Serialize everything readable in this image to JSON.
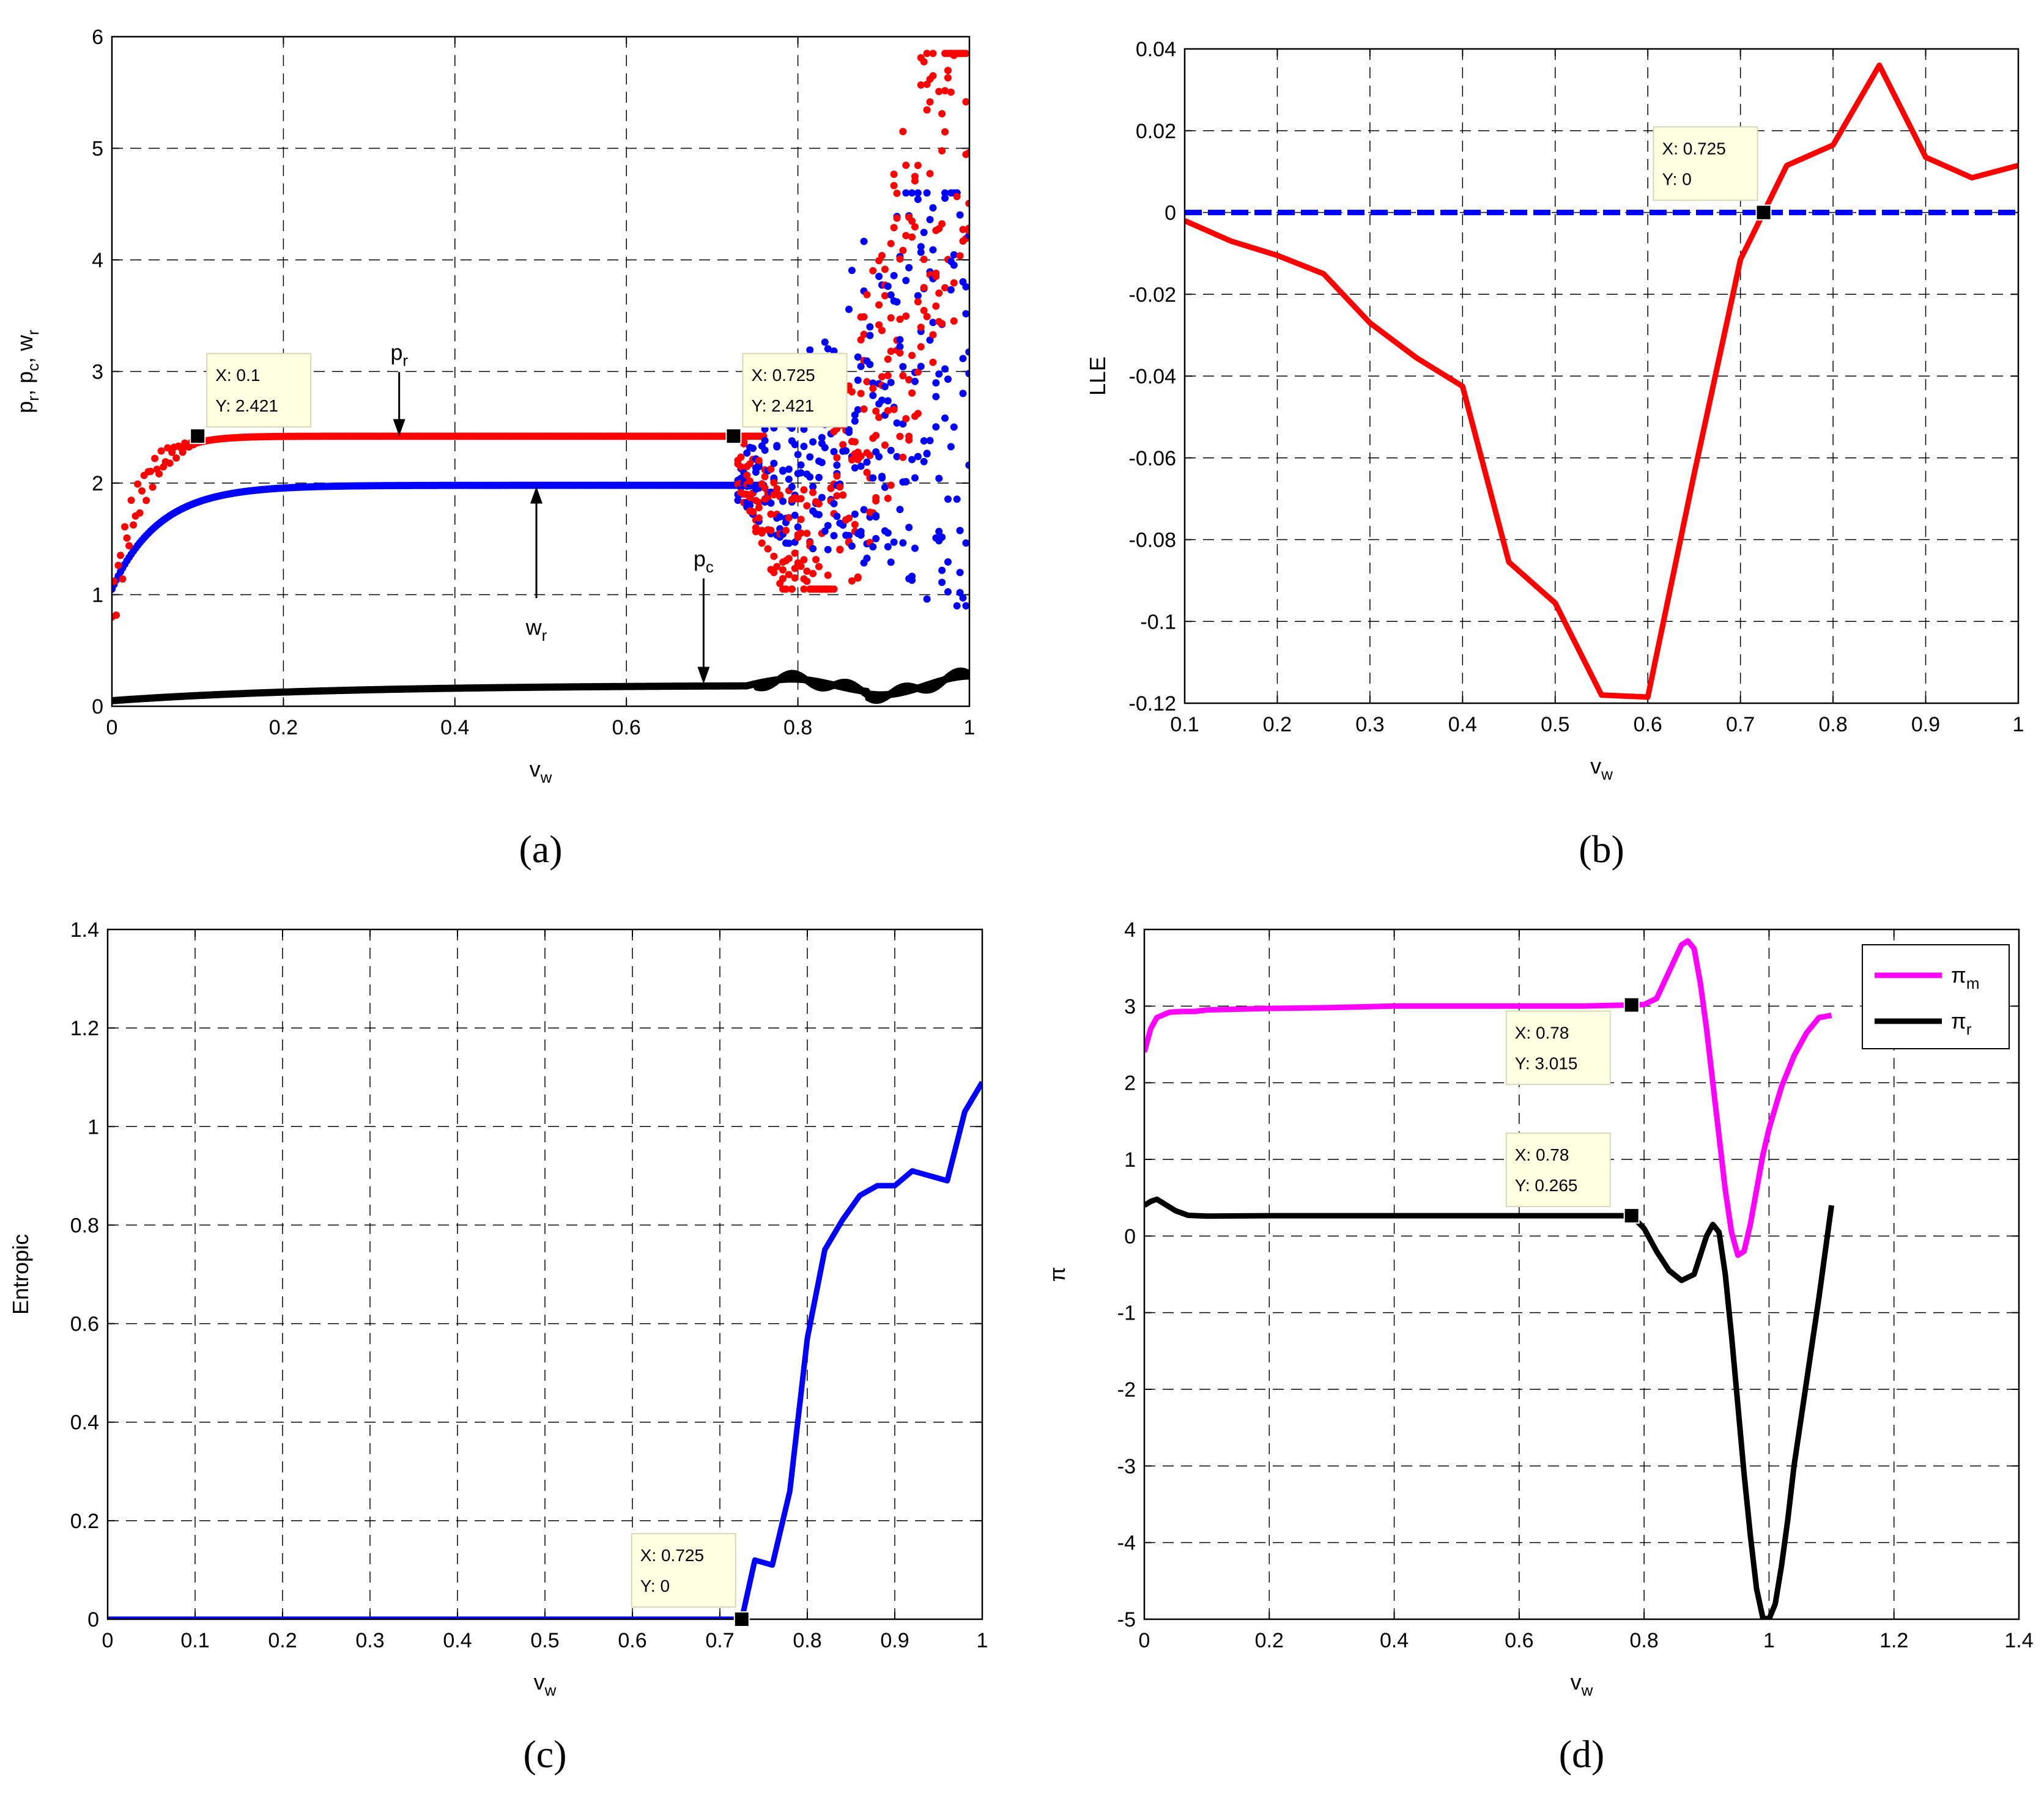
{
  "colors": {
    "red": "#ff0000",
    "blue": "#0000ff",
    "black": "#000000",
    "magenta": "#ff00ff",
    "tip_bg": "#ffffe1"
  },
  "chart_data": [
    {
      "id": "a",
      "type": "scatter",
      "panel_label": "(a)",
      "ylabel": {
        "parts": [
          [
            "p",
            ""
          ],
          [
            "r",
            "sub"
          ],
          [
            ", p",
            ""
          ],
          [
            "c",
            "sub"
          ],
          [
            ", w",
            ""
          ],
          [
            "r",
            "sub"
          ]
        ]
      },
      "xlabel": {
        "parts": [
          [
            "v",
            ""
          ],
          [
            "w",
            "sub"
          ]
        ]
      },
      "xlim": [
        0,
        1
      ],
      "ylim": [
        0,
        6
      ],
      "xticks": [
        0,
        0.2,
        0.4,
        0.6,
        0.8,
        1
      ],
      "xticklabels": [
        "0",
        "0.2",
        "0.4",
        "0.6",
        "0.8",
        "1"
      ],
      "yticks": [
        0,
        1,
        2,
        3,
        4,
        5,
        6
      ],
      "yticklabels": [
        "0",
        "1",
        "2",
        "3",
        "4",
        "5",
        "6"
      ],
      "series": [
        {
          "name": "p_r",
          "color": "#ff0000"
        },
        {
          "name": "w_r",
          "color": "#0000ff"
        },
        {
          "name": "p_c",
          "color": "#000000"
        }
      ],
      "annotations": [
        {
          "parts": [
            [
              "p",
              ""
            ],
            [
              "r",
              "sub"
            ]
          ],
          "x": 0.335,
          "y": 3.05,
          "arrow_to": [
            0.335,
            2.42
          ]
        },
        {
          "parts": [
            [
              "w",
              ""
            ],
            [
              "r",
              "sub"
            ]
          ],
          "x": 0.495,
          "y": 0.75,
          "arrow_to": [
            0.495,
            1.97
          ]
        },
        {
          "parts": [
            [
              "p",
              ""
            ],
            [
              "c",
              "sub"
            ]
          ],
          "x": 0.69,
          "y": 1.2,
          "arrow_to": [
            0.69,
            0.2
          ]
        }
      ],
      "datatips": [
        {
          "x": 0.1,
          "y": 2.421,
          "x_text": "X: 0.1",
          "y_text": "Y: 2.421"
        },
        {
          "x": 0.725,
          "y": 2.421,
          "x_text": "X: 0.725",
          "y_text": "Y: 2.421"
        }
      ]
    },
    {
      "id": "b",
      "type": "line",
      "panel_label": "(b)",
      "ylabel": {
        "parts": [
          [
            "LLE",
            ""
          ]
        ]
      },
      "xlabel": {
        "parts": [
          [
            "v",
            ""
          ],
          [
            "w",
            "sub"
          ]
        ]
      },
      "xlim": [
        0.1,
        1
      ],
      "ylim": [
        -0.12,
        0.04
      ],
      "xticks": [
        0.1,
        0.2,
        0.3,
        0.4,
        0.5,
        0.6,
        0.7,
        0.8,
        0.9,
        1
      ],
      "xticklabels": [
        "0.1",
        "0.2",
        "0.3",
        "0.4",
        "0.5",
        "0.6",
        "0.7",
        "0.8",
        "0.9",
        "1"
      ],
      "yticks": [
        -0.12,
        -0.1,
        -0.08,
        -0.06,
        -0.04,
        -0.02,
        0,
        0.02,
        0.04
      ],
      "yticklabels": [
        "-0.12",
        "-0.1",
        "-0.08",
        "-0.06",
        "-0.04",
        "-0.02",
        "0",
        "0.02",
        "0.04"
      ],
      "series": [
        {
          "name": "LLE",
          "color": "#ff0000",
          "style": "solid",
          "x": [
            0.1,
            0.15,
            0.2,
            0.25,
            0.3,
            0.35,
            0.4,
            0.45,
            0.5,
            0.55,
            0.6,
            0.65,
            0.7,
            0.75,
            0.8,
            0.85,
            0.9,
            0.95,
            1.0
          ],
          "y": [
            -0.002,
            -0.007,
            -0.0105,
            -0.015,
            -0.027,
            -0.0355,
            -0.0425,
            -0.0855,
            -0.0955,
            -0.118,
            -0.1185,
            -0.064,
            -0.0115,
            0.0115,
            0.0165,
            0.036,
            0.0135,
            0.0085,
            0.0115
          ]
        },
        {
          "name": "zero",
          "color": "#0000ff",
          "style": "dashed",
          "x": [
            0.1,
            1.0
          ],
          "y": [
            0,
            0
          ]
        }
      ],
      "datatips": [
        {
          "x": 0.725,
          "y": 0,
          "x_text": "X: 0.725",
          "y_text": "Y: 0"
        }
      ]
    },
    {
      "id": "c",
      "type": "line",
      "panel_label": "(c)",
      "ylabel": {
        "parts": [
          [
            "Entropic",
            ""
          ]
        ]
      },
      "xlabel": {
        "parts": [
          [
            "v",
            ""
          ],
          [
            "w",
            "sub"
          ]
        ]
      },
      "xlim": [
        0,
        1
      ],
      "ylim": [
        0,
        1.4
      ],
      "xticks": [
        0,
        0.1,
        0.2,
        0.3,
        0.4,
        0.5,
        0.6,
        0.7,
        0.8,
        0.9,
        1
      ],
      "xticklabels": [
        "0",
        "0.1",
        "0.2",
        "0.3",
        "0.4",
        "0.5",
        "0.6",
        "0.7",
        "0.8",
        "0.9",
        "1"
      ],
      "yticks": [
        0,
        0.2,
        0.4,
        0.6,
        0.8,
        1,
        1.2,
        1.4
      ],
      "yticklabels": [
        "0",
        "0.2",
        "0.4",
        "0.6",
        "0.8",
        "1",
        "1.2",
        "1.4"
      ],
      "series": [
        {
          "name": "Entropic",
          "color": "#0000ff",
          "style": "solid",
          "x": [
            0,
            0.7,
            0.725,
            0.74,
            0.76,
            0.78,
            0.8,
            0.82,
            0.84,
            0.86,
            0.88,
            0.9,
            0.92,
            0.94,
            0.96,
            0.98,
            1.0
          ],
          "y": [
            0,
            0,
            0,
            0.12,
            0.11,
            0.26,
            0.57,
            0.75,
            0.81,
            0.86,
            0.88,
            0.88,
            0.91,
            0.9,
            0.89,
            1.03,
            1.09
          ]
        }
      ],
      "datatips": [
        {
          "x": 0.725,
          "y": 0,
          "x_text": "X: 0.725",
          "y_text": "Y: 0"
        }
      ]
    },
    {
      "id": "d",
      "type": "line",
      "panel_label": "(d)",
      "ylabel": {
        "parts": [
          [
            "π",
            ""
          ]
        ]
      },
      "xlabel": {
        "parts": [
          [
            "v",
            ""
          ],
          [
            "w",
            "sub"
          ]
        ]
      },
      "xlim": [
        0,
        1.4
      ],
      "ylim": [
        -5,
        4
      ],
      "xticks": [
        0,
        0.2,
        0.4,
        0.6,
        0.8,
        1,
        1.2,
        1.4
      ],
      "xticklabels": [
        "0",
        "0.2",
        "0.4",
        "0.6",
        "0.8",
        "1",
        "1.2",
        "1.4"
      ],
      "yticks": [
        -5,
        -4,
        -3,
        -2,
        -1,
        0,
        1,
        2,
        3,
        4
      ],
      "yticklabels": [
        "-5",
        "-4",
        "-3",
        "-2",
        "-1",
        "0",
        "1",
        "2",
        "3",
        "4"
      ],
      "series": [
        {
          "name": "π_m",
          "legend": {
            "parts": [
              [
                "π",
                ""
              ],
              [
                "m",
                "sub"
              ]
            ]
          },
          "color": "#ff00ff",
          "style": "solid",
          "x": [
            0,
            0.01,
            0.02,
            0.04,
            0.06,
            0.08,
            0.1,
            0.2,
            0.3,
            0.4,
            0.5,
            0.6,
            0.7,
            0.75,
            0.78,
            0.8,
            0.82,
            0.84,
            0.86,
            0.87,
            0.88,
            0.89,
            0.9,
            0.91,
            0.92,
            0.93,
            0.94,
            0.95,
            0.96,
            0.97,
            0.98,
            0.99,
            1.0,
            1.02,
            1.04,
            1.06,
            1.08,
            1.1
          ],
          "y": [
            2.4,
            2.7,
            2.85,
            2.92,
            2.93,
            2.93,
            2.95,
            2.97,
            2.98,
            3.0,
            3.0,
            3.0,
            3.0,
            3.01,
            3.015,
            3.02,
            3.1,
            3.45,
            3.8,
            3.85,
            3.75,
            3.3,
            2.7,
            2.0,
            1.3,
            0.6,
            0.05,
            -0.25,
            -0.2,
            0.15,
            0.6,
            1.05,
            1.4,
            1.95,
            2.35,
            2.65,
            2.85,
            2.88
          ]
        },
        {
          "name": "π_r",
          "legend": {
            "parts": [
              [
                "π",
                ""
              ],
              [
                "r",
                "sub"
              ]
            ]
          },
          "color": "#000000",
          "style": "solid",
          "x": [
            0,
            0.01,
            0.02,
            0.03,
            0.05,
            0.07,
            0.1,
            0.2,
            0.4,
            0.6,
            0.75,
            0.78,
            0.8,
            0.82,
            0.84,
            0.86,
            0.88,
            0.9,
            0.91,
            0.92,
            0.93,
            0.94,
            0.95,
            0.96,
            0.97,
            0.98,
            0.99,
            1.0,
            1.01,
            1.02,
            1.03,
            1.04,
            1.06,
            1.08,
            1.1
          ],
          "y": [
            0.4,
            0.45,
            0.48,
            0.43,
            0.33,
            0.27,
            0.26,
            0.265,
            0.265,
            0.265,
            0.265,
            0.265,
            0.1,
            -0.2,
            -0.45,
            -0.58,
            -0.5,
            0.0,
            0.15,
            0.05,
            -0.5,
            -1.3,
            -2.2,
            -3.1,
            -3.9,
            -4.6,
            -4.98,
            -5.0,
            -4.8,
            -4.3,
            -3.7,
            -3.0,
            -1.9,
            -0.8,
            0.4
          ]
        }
      ],
      "datatips": [
        {
          "x": 0.78,
          "y": 3.015,
          "x_text": "X: 0.78",
          "y_text": "Y: 3.015"
        },
        {
          "x": 0.78,
          "y": 0.265,
          "x_text": "X: 0.78",
          "y_text": "Y: 0.265"
        }
      ]
    }
  ]
}
